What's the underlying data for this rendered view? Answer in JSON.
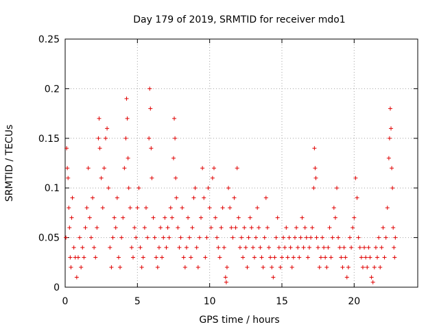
{
  "chart_data": {
    "type": "scatter",
    "title": "Day 179 of 2019, SRMTID for receiver mdo1",
    "xlabel": "GPS time / hours",
    "ylabel": "SRMTID / TECUs",
    "xlim": [
      0,
      24.4
    ],
    "ylim": [
      0,
      0.25
    ],
    "xticks": [
      "0",
      "5",
      "10",
      "15",
      "20"
    ],
    "yticks": [
      "0",
      "0.05",
      "0.1",
      "0.15",
      "0.2",
      "0.25"
    ],
    "grid": true,
    "legend": "none",
    "marker": "+",
    "marker_color": "#e00000",
    "series": [
      {
        "points": [
          [
            0.05,
            0.05
          ],
          [
            0.1,
            0.14
          ],
          [
            0.15,
            0.12
          ],
          [
            0.2,
            0.11
          ],
          [
            0.25,
            0.08
          ],
          [
            0.3,
            0.06
          ],
          [
            0.35,
            0.03
          ],
          [
            0.4,
            0.02
          ],
          [
            0.45,
            0.07
          ],
          [
            0.5,
            0.09
          ],
          [
            0.6,
            0.04
          ],
          [
            0.7,
            0.03
          ],
          [
            0.8,
            0.01
          ],
          [
            0.9,
            0.03
          ],
          [
            1.0,
            0.05
          ],
          [
            1.1,
            0.02
          ],
          [
            1.2,
            0.04
          ],
          [
            1.3,
            0.03
          ],
          [
            1.4,
            0.06
          ],
          [
            1.5,
            0.08
          ],
          [
            1.6,
            0.12
          ],
          [
            1.7,
            0.07
          ],
          [
            1.8,
            0.05
          ],
          [
            1.9,
            0.09
          ],
          [
            2.0,
            0.04
          ],
          [
            2.1,
            0.03
          ],
          [
            2.2,
            0.06
          ],
          [
            2.3,
            0.15
          ],
          [
            2.35,
            0.17
          ],
          [
            2.4,
            0.14
          ],
          [
            2.5,
            0.11
          ],
          [
            2.6,
            0.08
          ],
          [
            2.7,
            0.12
          ],
          [
            2.8,
            0.15
          ],
          [
            2.9,
            0.16
          ],
          [
            3.0,
            0.1
          ],
          [
            3.1,
            0.04
          ],
          [
            3.2,
            0.02
          ],
          [
            3.3,
            0.05
          ],
          [
            3.4,
            0.07
          ],
          [
            3.5,
            0.06
          ],
          [
            3.6,
            0.09
          ],
          [
            3.7,
            0.03
          ],
          [
            3.8,
            0.02
          ],
          [
            3.9,
            0.05
          ],
          [
            4.0,
            0.07
          ],
          [
            4.1,
            0.12
          ],
          [
            4.2,
            0.15
          ],
          [
            4.25,
            0.19
          ],
          [
            4.3,
            0.17
          ],
          [
            4.35,
            0.13
          ],
          [
            4.4,
            0.1
          ],
          [
            4.5,
            0.08
          ],
          [
            4.6,
            0.04
          ],
          [
            4.7,
            0.03
          ],
          [
            4.8,
            0.06
          ],
          [
            4.9,
            0.05
          ],
          [
            5.0,
            0.08
          ],
          [
            5.1,
            0.1
          ],
          [
            5.2,
            0.04
          ],
          [
            5.3,
            0.02
          ],
          [
            5.4,
            0.03
          ],
          [
            5.5,
            0.06
          ],
          [
            5.6,
            0.08
          ],
          [
            5.7,
            0.05
          ],
          [
            5.8,
            0.15
          ],
          [
            5.85,
            0.2
          ],
          [
            5.9,
            0.18
          ],
          [
            5.95,
            0.14
          ],
          [
            6.0,
            0.11
          ],
          [
            6.1,
            0.07
          ],
          [
            6.2,
            0.05
          ],
          [
            6.3,
            0.03
          ],
          [
            6.4,
            0.02
          ],
          [
            6.5,
            0.04
          ],
          [
            6.6,
            0.06
          ],
          [
            6.7,
            0.03
          ],
          [
            6.8,
            0.05
          ],
          [
            6.9,
            0.07
          ],
          [
            7.0,
            0.04
          ],
          [
            7.1,
            0.06
          ],
          [
            7.2,
            0.05
          ],
          [
            7.3,
            0.08
          ],
          [
            7.4,
            0.07
          ],
          [
            7.5,
            0.13
          ],
          [
            7.55,
            0.17
          ],
          [
            7.6,
            0.15
          ],
          [
            7.65,
            0.11
          ],
          [
            7.7,
            0.09
          ],
          [
            7.8,
            0.06
          ],
          [
            7.9,
            0.04
          ],
          [
            8.0,
            0.05
          ],
          [
            8.1,
            0.08
          ],
          [
            8.2,
            0.03
          ],
          [
            8.3,
            0.02
          ],
          [
            8.4,
            0.04
          ],
          [
            8.5,
            0.07
          ],
          [
            8.6,
            0.05
          ],
          [
            8.7,
            0.03
          ],
          [
            8.8,
            0.06
          ],
          [
            8.9,
            0.09
          ],
          [
            9.0,
            0.1
          ],
          [
            9.1,
            0.04
          ],
          [
            9.2,
            0.02
          ],
          [
            9.3,
            0.05
          ],
          [
            9.4,
            0.07
          ],
          [
            9.5,
            0.12
          ],
          [
            9.6,
            0.09
          ],
          [
            9.7,
            0.03
          ],
          [
            9.8,
            0.05
          ],
          [
            9.9,
            0.1
          ],
          [
            10.0,
            0.08
          ],
          [
            10.1,
            0.06
          ],
          [
            10.2,
            0.11
          ],
          [
            10.3,
            0.12
          ],
          [
            10.4,
            0.07
          ],
          [
            10.5,
            0.05
          ],
          [
            10.6,
            0.04
          ],
          [
            10.7,
            0.03
          ],
          [
            10.8,
            0.06
          ],
          [
            10.9,
            0.08
          ],
          [
            11.0,
            0.04
          ],
          [
            11.1,
            0.01
          ],
          [
            11.15,
            0.005
          ],
          [
            11.2,
            0.02
          ],
          [
            11.3,
            0.1
          ],
          [
            11.4,
            0.08
          ],
          [
            11.5,
            0.06
          ],
          [
            11.6,
            0.05
          ],
          [
            11.7,
            0.09
          ],
          [
            11.8,
            0.06
          ],
          [
            11.9,
            0.12
          ],
          [
            12.0,
            0.07
          ],
          [
            12.1,
            0.04
          ],
          [
            12.2,
            0.05
          ],
          [
            12.3,
            0.03
          ],
          [
            12.4,
            0.06
          ],
          [
            12.5,
            0.04
          ],
          [
            12.6,
            0.02
          ],
          [
            12.7,
            0.05
          ],
          [
            12.8,
            0.07
          ],
          [
            12.9,
            0.06
          ],
          [
            13.0,
            0.04
          ],
          [
            13.1,
            0.03
          ],
          [
            13.2,
            0.05
          ],
          [
            13.3,
            0.08
          ],
          [
            13.4,
            0.06
          ],
          [
            13.5,
            0.04
          ],
          [
            13.6,
            0.03
          ],
          [
            13.7,
            0.02
          ],
          [
            13.8,
            0.05
          ],
          [
            13.9,
            0.09
          ],
          [
            14.0,
            0.06
          ],
          [
            14.1,
            0.04
          ],
          [
            14.2,
            0.03
          ],
          [
            14.3,
            0.02
          ],
          [
            14.4,
            0.01
          ],
          [
            14.5,
            0.03
          ],
          [
            14.6,
            0.05
          ],
          [
            14.7,
            0.07
          ],
          [
            14.8,
            0.04
          ],
          [
            14.9,
            0.02
          ],
          [
            15.0,
            0.03
          ],
          [
            15.1,
            0.05
          ],
          [
            15.2,
            0.04
          ],
          [
            15.3,
            0.06
          ],
          [
            15.4,
            0.03
          ],
          [
            15.5,
            0.05
          ],
          [
            15.6,
            0.04
          ],
          [
            15.7,
            0.02
          ],
          [
            15.8,
            0.03
          ],
          [
            15.9,
            0.05
          ],
          [
            16.0,
            0.06
          ],
          [
            16.1,
            0.04
          ],
          [
            16.2,
            0.03
          ],
          [
            16.3,
            0.05
          ],
          [
            16.4,
            0.07
          ],
          [
            16.5,
            0.04
          ],
          [
            16.6,
            0.06
          ],
          [
            16.7,
            0.05
          ],
          [
            16.8,
            0.03
          ],
          [
            16.9,
            0.04
          ],
          [
            17.0,
            0.05
          ],
          [
            17.1,
            0.06
          ],
          [
            17.2,
            0.1
          ],
          [
            17.25,
            0.14
          ],
          [
            17.3,
            0.12
          ],
          [
            17.35,
            0.11
          ],
          [
            17.4,
            0.05
          ],
          [
            17.5,
            0.04
          ],
          [
            17.6,
            0.02
          ],
          [
            17.7,
            0.03
          ],
          [
            17.8,
            0.05
          ],
          [
            17.9,
            0.04
          ],
          [
            18.0,
            0.03
          ],
          [
            18.1,
            0.02
          ],
          [
            18.2,
            0.04
          ],
          [
            18.3,
            0.06
          ],
          [
            18.4,
            0.03
          ],
          [
            18.5,
            0.05
          ],
          [
            18.6,
            0.08
          ],
          [
            18.7,
            0.07
          ],
          [
            18.8,
            0.1
          ],
          [
            18.9,
            0.05
          ],
          [
            19.0,
            0.04
          ],
          [
            19.1,
            0.03
          ],
          [
            19.2,
            0.02
          ],
          [
            19.3,
            0.04
          ],
          [
            19.4,
            0.03
          ],
          [
            19.5,
            0.01
          ],
          [
            19.6,
            0.02
          ],
          [
            19.7,
            0.05
          ],
          [
            19.8,
            0.04
          ],
          [
            19.9,
            0.06
          ],
          [
            20.0,
            0.07
          ],
          [
            20.1,
            0.11
          ],
          [
            20.2,
            0.09
          ],
          [
            20.3,
            0.05
          ],
          [
            20.4,
            0.04
          ],
          [
            20.5,
            0.03
          ],
          [
            20.6,
            0.02
          ],
          [
            20.7,
            0.04
          ],
          [
            20.8,
            0.03
          ],
          [
            20.9,
            0.02
          ],
          [
            21.0,
            0.04
          ],
          [
            21.1,
            0.03
          ],
          [
            21.2,
            0.01
          ],
          [
            21.3,
            0.005
          ],
          [
            21.4,
            0.02
          ],
          [
            21.5,
            0.04
          ],
          [
            21.6,
            0.03
          ],
          [
            21.7,
            0.05
          ],
          [
            21.8,
            0.02
          ],
          [
            21.9,
            0.04
          ],
          [
            22.0,
            0.06
          ],
          [
            22.1,
            0.03
          ],
          [
            22.2,
            0.05
          ],
          [
            22.3,
            0.08
          ],
          [
            22.4,
            0.13
          ],
          [
            22.45,
            0.15
          ],
          [
            22.5,
            0.18
          ],
          [
            22.55,
            0.16
          ],
          [
            22.6,
            0.12
          ],
          [
            22.65,
            0.1
          ],
          [
            22.7,
            0.06
          ],
          [
            22.75,
            0.04
          ],
          [
            22.8,
            0.03
          ],
          [
            22.85,
            0.05
          ]
        ]
      }
    ]
  }
}
